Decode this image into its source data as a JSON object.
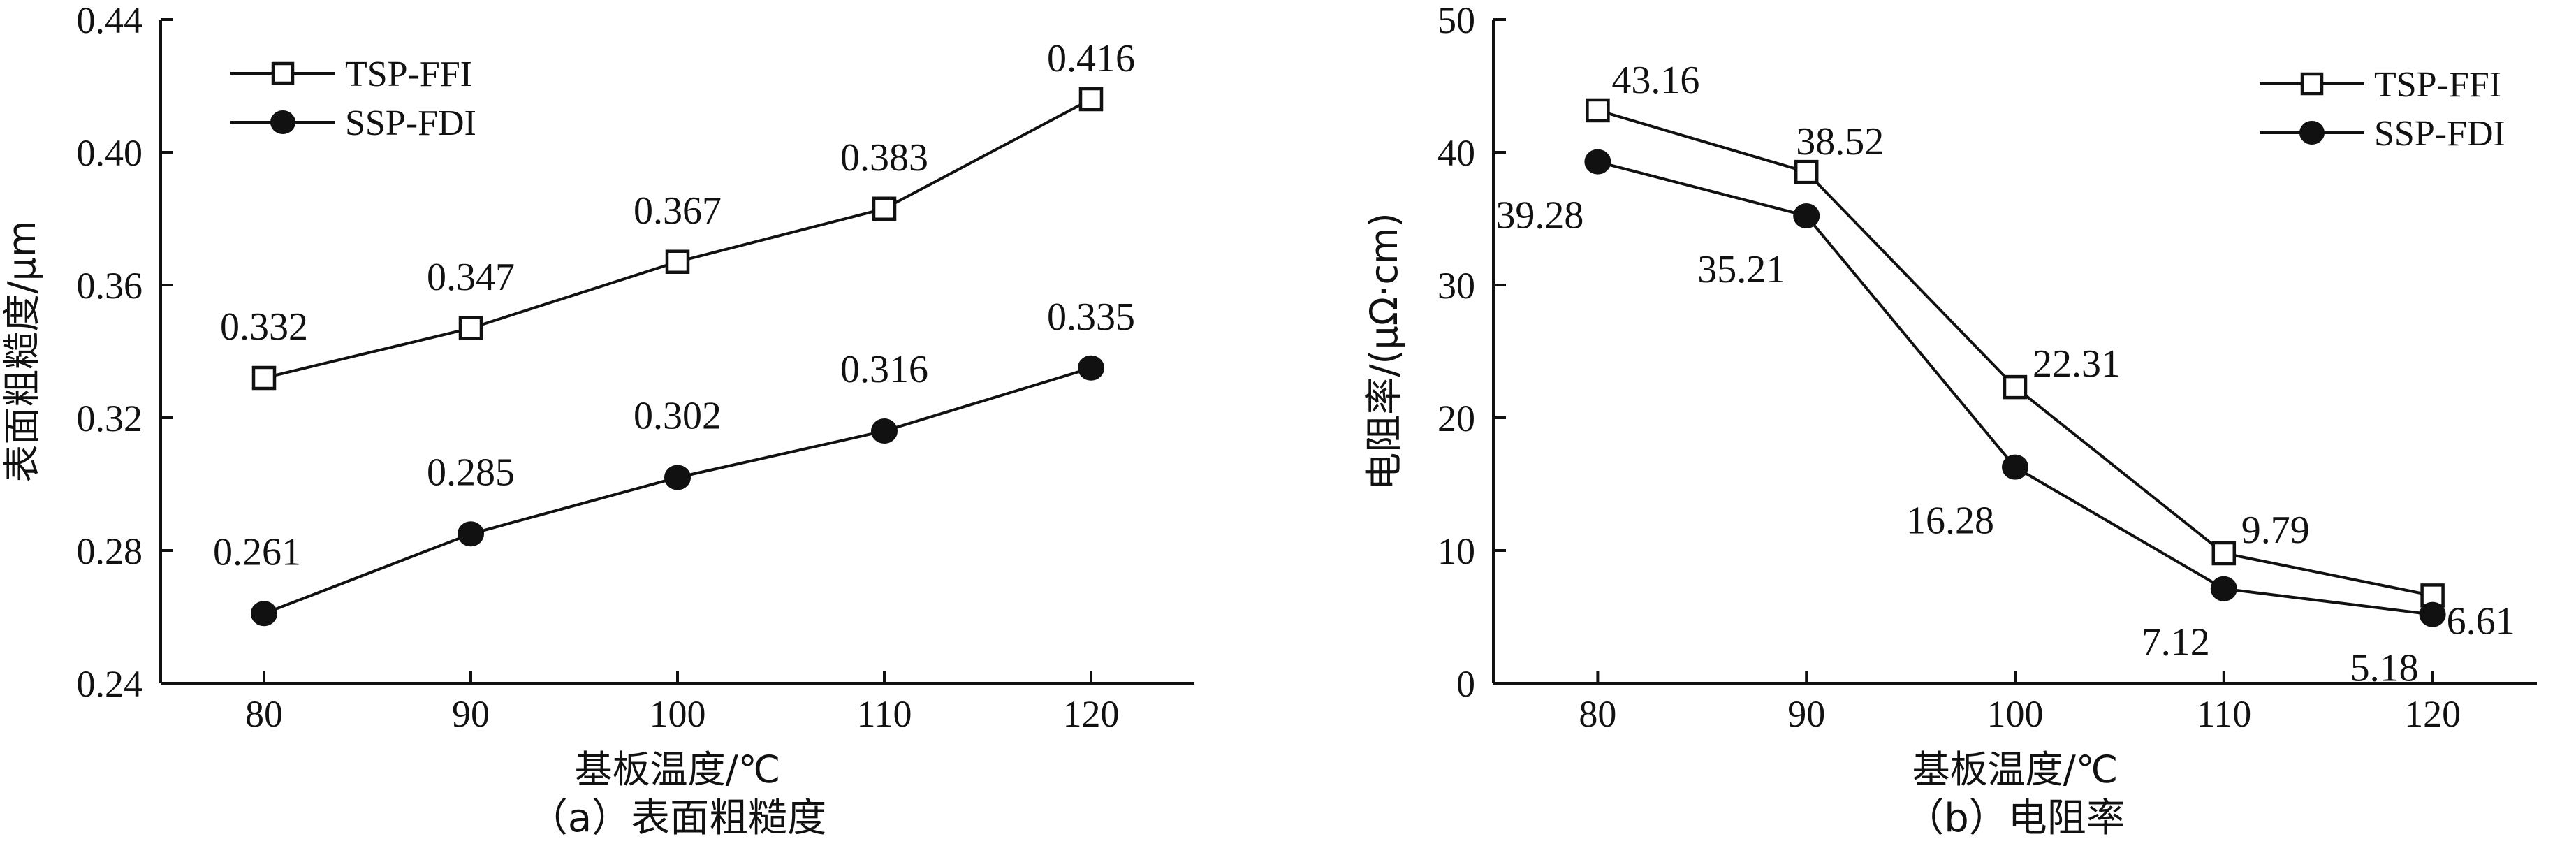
{
  "chart_data": [
    {
      "type": "line",
      "caption": "（a）表面粗糙度",
      "xlabel": "基板温度/℃",
      "ylabel": "表面粗糙度/μm",
      "x": [
        80,
        90,
        100,
        110,
        120
      ],
      "xlim": [
        75,
        125
      ],
      "ylim": [
        0.24,
        0.44
      ],
      "yticks": [
        "0.24",
        "0.28",
        "0.32",
        "0.36",
        "0.40",
        "0.44"
      ],
      "xticks": [
        "80",
        "90",
        "100",
        "110",
        "120"
      ],
      "legend_position": "top-left",
      "grid": false,
      "series": [
        {
          "name": "TSP-FFI",
          "marker": "open-square",
          "values": [
            0.332,
            0.347,
            0.367,
            0.383,
            0.416
          ],
          "labels": [
            "0.332",
            "0.347",
            "0.367",
            "0.383",
            "0.416"
          ]
        },
        {
          "name": "SSP-FDI",
          "marker": "filled-circle",
          "values": [
            0.261,
            0.285,
            0.302,
            0.316,
            0.335
          ],
          "labels": [
            "0.261",
            "0.285",
            "0.302",
            "0.316",
            "0.335"
          ]
        }
      ]
    },
    {
      "type": "line",
      "caption": "（b）电阻率",
      "xlabel": "基板温度/℃",
      "ylabel": "电阻率/(μΩ·cm)",
      "x": [
        80,
        90,
        100,
        110,
        120
      ],
      "xlim": [
        75,
        125
      ],
      "ylim": [
        0,
        50
      ],
      "yticks": [
        "0",
        "10",
        "20",
        "30",
        "40",
        "50"
      ],
      "xticks": [
        "80",
        "90",
        "100",
        "110",
        "120"
      ],
      "legend_position": "top-right",
      "grid": false,
      "series": [
        {
          "name": "TSP-FFI",
          "marker": "open-square",
          "values": [
            43.16,
            38.52,
            22.31,
            9.79,
            6.61
          ],
          "labels": [
            "43.16",
            "38.52",
            "22.31",
            "9.79",
            "6.61"
          ]
        },
        {
          "name": "SSP-FDI",
          "marker": "filled-circle",
          "values": [
            39.28,
            35.21,
            16.28,
            7.12,
            5.18
          ],
          "labels": [
            "39.28",
            "35.21",
            "16.28",
            "7.12",
            "5.18"
          ]
        }
      ]
    }
  ]
}
